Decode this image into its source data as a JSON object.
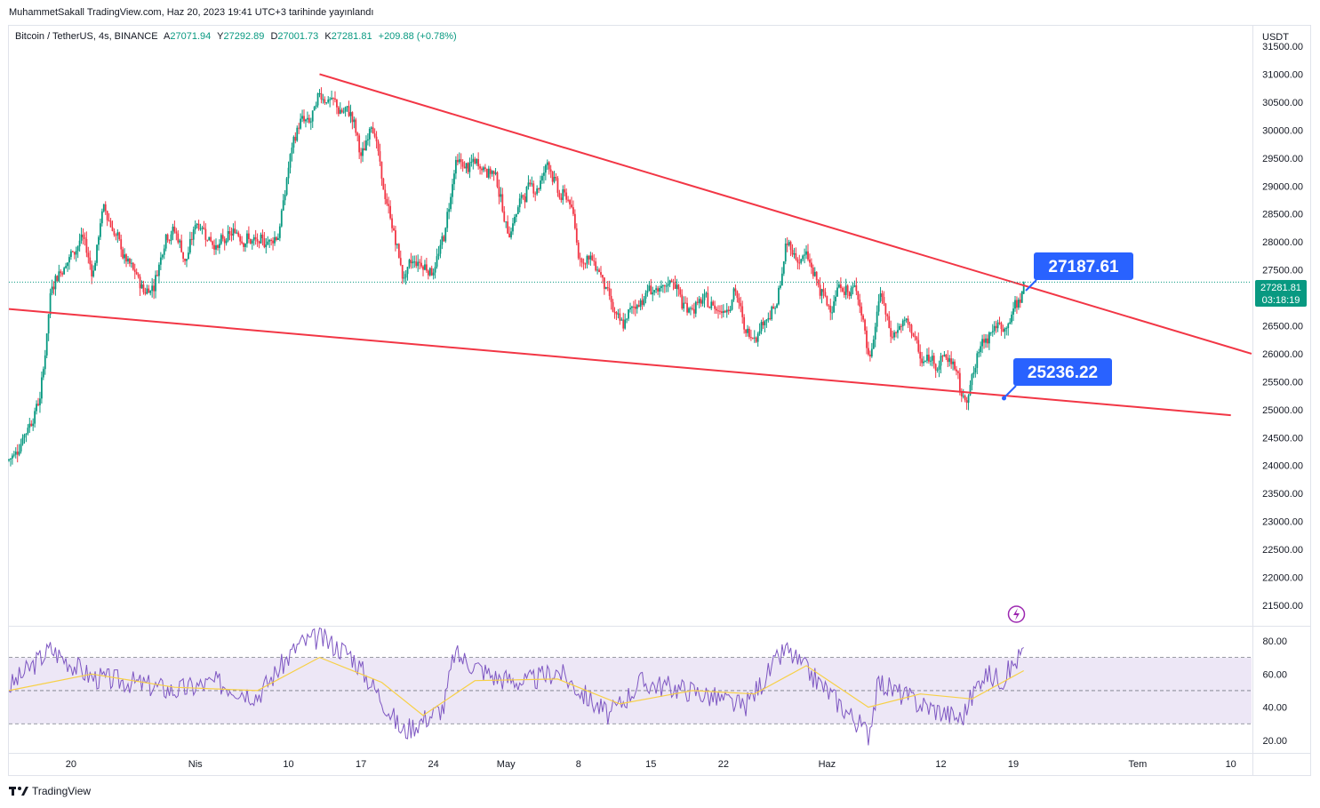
{
  "publish_line": "MuhammetSakall TradingView.com, Haz 20, 2023 19:41 UTC+3 tarihinde yayınlandı",
  "legend": {
    "symbol": "Bitcoin / TetherUS, 4s, BINANCE",
    "open_label": "A",
    "open": "27071.94",
    "high_label": "Y",
    "high": "27292.89",
    "low_label": "D",
    "low": "27001.73",
    "close_label": "K",
    "close": "27281.81",
    "change": "+209.88 (+0.78%)"
  },
  "currency": "USDT",
  "price_axis_ticks": [
    "31500.00",
    "31000.00",
    "30500.00",
    "30000.00",
    "29500.00",
    "29000.00",
    "28500.00",
    "28000.00",
    "27500.00",
    "27000.00",
    "26500.00",
    "26000.00",
    "25500.00",
    "25000.00",
    "24500.00",
    "24000.00",
    "23500.00",
    "23000.00",
    "22500.00",
    "22000.00",
    "21500.00"
  ],
  "last_price": {
    "value": "27281.81",
    "countdown": "03:18:19",
    "color": "#089981"
  },
  "time_axis_ticks": [
    "20",
    "Nis",
    "10",
    "17",
    "24",
    "May",
    "8",
    "15",
    "22",
    "Haz",
    "12",
    "19",
    "Tem",
    "10"
  ],
  "rsi_axis_ticks": [
    "80.00",
    "60.00",
    "40.00",
    "20.00"
  ],
  "annotations": {
    "upper_label": "27187.61",
    "lower_label": "25236.22",
    "label_color": "#2962ff",
    "trendline_color": "#f23645"
  },
  "colors": {
    "up": "#089981",
    "down": "#f23645",
    "rsi_line": "#7e57c2",
    "rsi_ma": "#f7d046",
    "rsi_band": "#ede7f6"
  },
  "footer": {
    "brand": "TradingView"
  },
  "chart_data": [
    {
      "type": "candlestick",
      "title": "Bitcoin / TetherUS, 4s, BINANCE",
      "y_unit": "USDT",
      "ylim": [
        21150,
        31850
      ],
      "x_range": [
        "2023-03-14",
        "2023-07-12"
      ],
      "support_resistance": [
        {
          "name": "upper",
          "from": [
            "2023-04-13",
            31000
          ],
          "to": [
            "2023-07-12",
            26000
          ]
        },
        {
          "name": "lower",
          "from": [
            "2023-03-14",
            26800
          ],
          "to": [
            "2023-07-10",
            24900
          ]
        }
      ],
      "ohlc_path": [
        [
          "2023-03-14",
          24100
        ],
        [
          "2023-03-16",
          24800
        ],
        [
          "2023-03-17",
          25300
        ],
        [
          "2023-03-18",
          27300
        ],
        [
          "2023-03-20",
          27800
        ],
        [
          "2023-03-21",
          28100
        ],
        [
          "2023-03-22",
          27400
        ],
        [
          "2023-03-23",
          28700
        ],
        [
          "2023-03-25",
          27700
        ],
        [
          "2023-03-27",
          27100
        ],
        [
          "2023-03-28",
          27300
        ],
        [
          "2023-03-29",
          28200
        ],
        [
          "2023-03-30",
          28200
        ],
        [
          "2023-03-31",
          27600
        ],
        [
          "2023-04-01",
          28400
        ],
        [
          "2023-04-03",
          27900
        ],
        [
          "2023-04-05",
          28200
        ],
        [
          "2023-04-07",
          27900
        ],
        [
          "2023-04-09",
          28200
        ],
        [
          "2023-04-10",
          29500
        ],
        [
          "2023-04-11",
          30200
        ],
        [
          "2023-04-12",
          30100
        ],
        [
          "2023-04-13",
          30700
        ],
        [
          "2023-04-14",
          30500
        ],
        [
          "2023-04-15",
          30300
        ],
        [
          "2023-04-16",
          30300
        ],
        [
          "2023-04-17",
          29400
        ],
        [
          "2023-04-18",
          30300
        ],
        [
          "2023-04-19",
          28900
        ],
        [
          "2023-04-20",
          28200
        ],
        [
          "2023-04-21",
          27300
        ],
        [
          "2023-04-22",
          27700
        ],
        [
          "2023-04-24",
          27500
        ],
        [
          "2023-04-25",
          28200
        ],
        [
          "2023-04-26",
          29500
        ],
        [
          "2023-04-27",
          29300
        ],
        [
          "2023-04-28",
          29400
        ],
        [
          "2023-04-29",
          29300
        ],
        [
          "2023-04-30",
          29200
        ],
        [
          "2023-05-01",
          28100
        ],
        [
          "2023-05-02",
          28600
        ],
        [
          "2023-05-03",
          29000
        ],
        [
          "2023-05-04",
          29000
        ],
        [
          "2023-05-05",
          29500
        ],
        [
          "2023-05-06",
          28800
        ],
        [
          "2023-05-07",
          28800
        ],
        [
          "2023-05-08",
          27700
        ],
        [
          "2023-05-09",
          27700
        ],
        [
          "2023-05-10",
          27500
        ],
        [
          "2023-05-11",
          26900
        ],
        [
          "2023-05-12",
          26400
        ],
        [
          "2023-05-13",
          26800
        ],
        [
          "2023-05-15",
          27200
        ],
        [
          "2023-05-16",
          27000
        ],
        [
          "2023-05-17",
          27400
        ],
        [
          "2023-05-18",
          26800
        ],
        [
          "2023-05-20",
          26900
        ],
        [
          "2023-05-22",
          26800
        ],
        [
          "2023-05-23",
          27200
        ],
        [
          "2023-05-24",
          26300
        ],
        [
          "2023-05-25",
          26400
        ],
        [
          "2023-05-26",
          26700
        ],
        [
          "2023-05-27",
          26800
        ],
        [
          "2023-05-28",
          28000
        ],
        [
          "2023-05-29",
          27700
        ],
        [
          "2023-05-30",
          27700
        ],
        [
          "2023-05-31",
          27200
        ],
        [
          "2023-06-01",
          26800
        ],
        [
          "2023-06-02",
          27200
        ],
        [
          "2023-06-03",
          27100
        ],
        [
          "2023-06-04",
          27100
        ],
        [
          "2023-06-05",
          25700
        ],
        [
          "2023-06-06",
          27200
        ],
        [
          "2023-06-07",
          26300
        ],
        [
          "2023-06-08",
          26500
        ],
        [
          "2023-06-09",
          26500
        ],
        [
          "2023-06-10",
          25800
        ],
        [
          "2023-06-11",
          25900
        ],
        [
          "2023-06-12",
          25900
        ],
        [
          "2023-06-13",
          25900
        ],
        [
          "2023-06-14",
          25100
        ],
        [
          "2023-06-15",
          25600
        ],
        [
          "2023-06-16",
          26300
        ],
        [
          "2023-06-17",
          26500
        ],
        [
          "2023-06-18",
          26400
        ],
        [
          "2023-06-19",
          26800
        ],
        [
          "2023-06-20",
          27282
        ]
      ],
      "last": {
        "open": 27071.94,
        "high": 27292.89,
        "low": 27001.73,
        "close": 27281.81
      }
    },
    {
      "type": "line",
      "title": "RSI",
      "ylim": [
        13,
        88
      ],
      "bands": [
        30,
        50,
        70
      ],
      "series": [
        {
          "values": [
            [
              "2023-03-14",
              52
            ],
            [
              "2023-03-18",
              75
            ],
            [
              "2023-03-22",
              58
            ],
            [
              "2023-03-26",
              55
            ],
            [
              "2023-03-30",
              50
            ],
            [
              "2023-04-03",
              55
            ],
            [
              "2023-04-07",
              47
            ],
            [
              "2023-04-11",
              78
            ],
            [
              "2023-04-13",
              82
            ],
            [
              "2023-04-16",
              72
            ],
            [
              "2023-04-19",
              45
            ],
            [
              "2023-04-21",
              25
            ],
            [
              "2023-04-25",
              40
            ],
            [
              "2023-04-26",
              72
            ],
            [
              "2023-04-30",
              58
            ],
            [
              "2023-05-03",
              55
            ],
            [
              "2023-05-06",
              62
            ],
            [
              "2023-05-09",
              45
            ],
            [
              "2023-05-11",
              35
            ],
            [
              "2023-05-14",
              55
            ],
            [
              "2023-05-19",
              50
            ],
            [
              "2023-05-24",
              40
            ],
            [
              "2023-05-28",
              75
            ],
            [
              "2023-06-01",
              50
            ],
            [
              "2023-06-05",
              24
            ],
            [
              "2023-06-06",
              55
            ],
            [
              "2023-06-10",
              42
            ],
            [
              "2023-06-14",
              33
            ],
            [
              "2023-06-16",
              60
            ],
            [
              "2023-06-18",
              57
            ],
            [
              "2023-06-20",
              74
            ]
          ]
        },
        {
          "values": [
            [
              "2023-03-14",
              50
            ],
            [
              "2023-03-22",
              60
            ],
            [
              "2023-03-30",
              52
            ],
            [
              "2023-04-07",
              50
            ],
            [
              "2023-04-13",
              70
            ],
            [
              "2023-04-19",
              55
            ],
            [
              "2023-04-23",
              35
            ],
            [
              "2023-04-28",
              56
            ],
            [
              "2023-05-06",
              57
            ],
            [
              "2023-05-12",
              42
            ],
            [
              "2023-05-19",
              50
            ],
            [
              "2023-05-25",
              48
            ],
            [
              "2023-05-30",
              65
            ],
            [
              "2023-06-05",
              40
            ],
            [
              "2023-06-10",
              48
            ],
            [
              "2023-06-15",
              45
            ],
            [
              "2023-06-20",
              62
            ]
          ]
        }
      ]
    }
  ]
}
